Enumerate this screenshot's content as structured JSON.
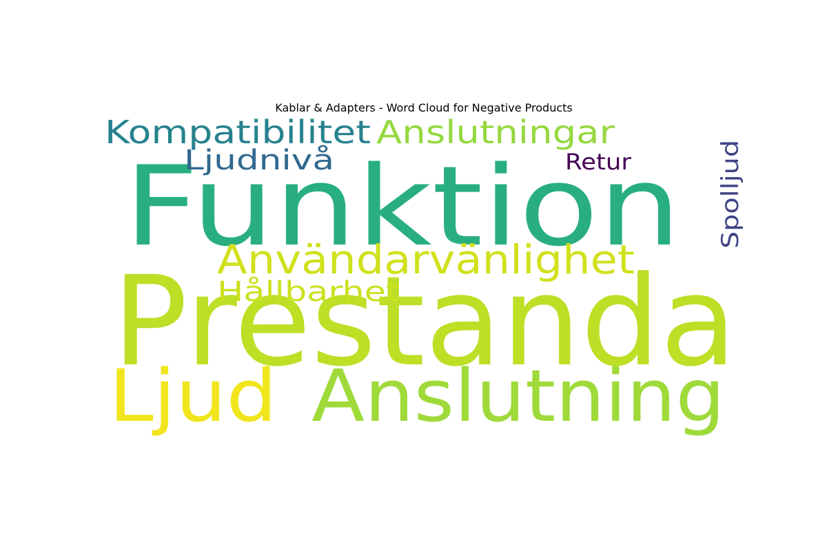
{
  "chart_data": {
    "type": "wordcloud",
    "title": "Kablar & Adapters - Word Cloud for Negative Products",
    "words": [
      {
        "text": "Prestanda",
        "color": "#bddf26"
      },
      {
        "text": "Funktion",
        "color": "#29af7f"
      },
      {
        "text": "Anslutning",
        "color": "#9fda3a"
      },
      {
        "text": "Ljud",
        "color": "#f1e51d"
      },
      {
        "text": "Användarvänlighet",
        "color": "#d0e11c"
      },
      {
        "text": "Kompatibilitet",
        "color": "#26828e"
      },
      {
        "text": "Anslutningar",
        "color": "#95d840"
      },
      {
        "text": "Hållbarhet",
        "color": "#cae11f"
      },
      {
        "text": "Ljudnivå",
        "color": "#31688e"
      },
      {
        "text": "Spolljud",
        "color": "#414487"
      },
      {
        "text": "Retur",
        "color": "#440154"
      }
    ],
    "background": "#ffffff"
  }
}
